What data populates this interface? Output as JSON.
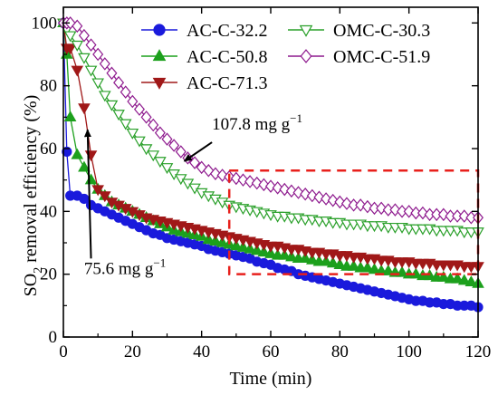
{
  "chart_data": {
    "type": "scatter",
    "xlabel": "Time (min)",
    "ylabel_main": "SO",
    "ylabel_sub": "2",
    "ylabel_rest": " removal efficiency (%)",
    "xlim": [
      0,
      120
    ],
    "ylim": [
      0,
      105
    ],
    "xticks": [
      0,
      20,
      40,
      60,
      80,
      100,
      120
    ],
    "yticks": [
      0,
      20,
      40,
      60,
      80,
      100
    ],
    "grid": false,
    "legend_position": "top",
    "series": [
      {
        "name": "AC-C-32.2",
        "color": "#1a1adc",
        "marker": "circle",
        "fill": "filled",
        "points": [
          [
            0,
            100
          ],
          [
            1,
            59
          ],
          [
            2,
            45
          ],
          [
            4,
            45
          ],
          [
            6,
            44
          ],
          [
            8,
            42
          ],
          [
            10,
            41
          ],
          [
            12,
            40
          ],
          [
            14,
            39
          ],
          [
            16,
            38
          ],
          [
            18,
            37
          ],
          [
            20,
            36
          ],
          [
            22,
            35
          ],
          [
            24,
            34
          ],
          [
            26,
            33
          ],
          [
            28,
            32.5
          ],
          [
            30,
            31.5
          ],
          [
            32,
            31
          ],
          [
            34,
            30.5
          ],
          [
            36,
            30
          ],
          [
            38,
            29.5
          ],
          [
            40,
            29
          ],
          [
            42,
            28
          ],
          [
            44,
            27.5
          ],
          [
            46,
            27
          ],
          [
            48,
            26.5
          ],
          [
            50,
            26
          ],
          [
            52,
            25.5
          ],
          [
            54,
            25
          ],
          [
            56,
            24
          ],
          [
            58,
            23.5
          ],
          [
            60,
            23
          ],
          [
            62,
            22
          ],
          [
            64,
            21.5
          ],
          [
            66,
            21
          ],
          [
            68,
            20
          ],
          [
            70,
            19.5
          ],
          [
            72,
            19
          ],
          [
            74,
            18.5
          ],
          [
            76,
            18
          ],
          [
            78,
            17.5
          ],
          [
            80,
            17
          ],
          [
            82,
            16.5
          ],
          [
            84,
            16
          ],
          [
            86,
            15.5
          ],
          [
            88,
            15
          ],
          [
            90,
            14.5
          ],
          [
            92,
            14
          ],
          [
            94,
            13.5
          ],
          [
            96,
            13
          ],
          [
            98,
            12.5
          ],
          [
            100,
            12
          ],
          [
            102,
            11.5
          ],
          [
            104,
            11.5
          ],
          [
            106,
            11
          ],
          [
            108,
            11
          ],
          [
            110,
            10.5
          ],
          [
            112,
            10.5
          ],
          [
            114,
            10
          ],
          [
            116,
            10
          ],
          [
            118,
            10
          ],
          [
            120,
            9.5
          ]
        ]
      },
      {
        "name": "AC-C-50.8",
        "color": "#1ca01c",
        "marker": "triangle-up",
        "fill": "filled",
        "points": [
          [
            0,
            100
          ],
          [
            1,
            90
          ],
          [
            2,
            70
          ],
          [
            4,
            58
          ],
          [
            6,
            54
          ],
          [
            8,
            50
          ],
          [
            10,
            47
          ],
          [
            12,
            45
          ],
          [
            14,
            43
          ],
          [
            16,
            42
          ],
          [
            18,
            41
          ],
          [
            20,
            40
          ],
          [
            22,
            39
          ],
          [
            24,
            38
          ],
          [
            26,
            37
          ],
          [
            28,
            36
          ],
          [
            30,
            35
          ],
          [
            32,
            34
          ],
          [
            34,
            33.5
          ],
          [
            36,
            33
          ],
          [
            38,
            32.5
          ],
          [
            40,
            32
          ],
          [
            42,
            31
          ],
          [
            44,
            30.5
          ],
          [
            46,
            30
          ],
          [
            48,
            29.5
          ],
          [
            50,
            29
          ],
          [
            52,
            28.5
          ],
          [
            54,
            28
          ],
          [
            56,
            27.5
          ],
          [
            58,
            27
          ],
          [
            60,
            26.5
          ],
          [
            62,
            26
          ],
          [
            64,
            26
          ],
          [
            66,
            25.5
          ],
          [
            68,
            25
          ],
          [
            70,
            25
          ],
          [
            72,
            24.5
          ],
          [
            74,
            24
          ],
          [
            76,
            24
          ],
          [
            78,
            23.5
          ],
          [
            80,
            23
          ],
          [
            82,
            22.5
          ],
          [
            84,
            22.5
          ],
          [
            86,
            22
          ],
          [
            88,
            22
          ],
          [
            90,
            21.5
          ],
          [
            92,
            21
          ],
          [
            94,
            21
          ],
          [
            96,
            20.5
          ],
          [
            98,
            20.5
          ],
          [
            100,
            20
          ],
          [
            102,
            20
          ],
          [
            104,
            19.5
          ],
          [
            106,
            19.5
          ],
          [
            108,
            19
          ],
          [
            110,
            19
          ],
          [
            112,
            18.5
          ],
          [
            114,
            18.5
          ],
          [
            116,
            18
          ],
          [
            118,
            17.5
          ],
          [
            120,
            17
          ]
        ]
      },
      {
        "name": "AC-C-71.3",
        "color": "#a01818",
        "marker": "triangle-down",
        "fill": "filled",
        "points": [
          [
            0,
            100
          ],
          [
            1,
            92
          ],
          [
            2,
            92
          ],
          [
            4,
            85
          ],
          [
            6,
            73
          ],
          [
            8,
            58
          ],
          [
            10,
            47
          ],
          [
            12,
            45
          ],
          [
            14,
            43
          ],
          [
            16,
            42
          ],
          [
            18,
            41
          ],
          [
            20,
            40
          ],
          [
            22,
            39
          ],
          [
            24,
            38
          ],
          [
            26,
            37.5
          ],
          [
            28,
            37
          ],
          [
            30,
            36.5
          ],
          [
            32,
            36
          ],
          [
            34,
            35.5
          ],
          [
            36,
            35
          ],
          [
            38,
            34.5
          ],
          [
            40,
            34
          ],
          [
            42,
            33.5
          ],
          [
            44,
            33
          ],
          [
            46,
            32.5
          ],
          [
            48,
            32
          ],
          [
            50,
            31.5
          ],
          [
            52,
            31
          ],
          [
            54,
            30.5
          ],
          [
            56,
            30
          ],
          [
            58,
            29.5
          ],
          [
            60,
            29
          ],
          [
            62,
            29
          ],
          [
            64,
            28.5
          ],
          [
            66,
            28
          ],
          [
            68,
            28
          ],
          [
            70,
            27.5
          ],
          [
            72,
            27
          ],
          [
            74,
            27
          ],
          [
            76,
            26.5
          ],
          [
            78,
            26.5
          ],
          [
            80,
            26
          ],
          [
            82,
            26
          ],
          [
            84,
            25.5
          ],
          [
            86,
            25.5
          ],
          [
            88,
            25
          ],
          [
            90,
            25
          ],
          [
            92,
            24.5
          ],
          [
            94,
            24.5
          ],
          [
            96,
            24
          ],
          [
            98,
            24
          ],
          [
            100,
            24
          ],
          [
            102,
            23.5
          ],
          [
            104,
            23.5
          ],
          [
            106,
            23.5
          ],
          [
            108,
            23
          ],
          [
            110,
            23
          ],
          [
            112,
            23
          ],
          [
            114,
            23
          ],
          [
            116,
            22.5
          ],
          [
            118,
            22.5
          ],
          [
            120,
            22.5
          ]
        ]
      },
      {
        "name": "OMC-C-30.3",
        "color": "#2aa02a",
        "marker": "triangle-down",
        "fill": "open",
        "points": [
          [
            0,
            100
          ],
          [
            1,
            98
          ],
          [
            2,
            96
          ],
          [
            4,
            93
          ],
          [
            6,
            89
          ],
          [
            8,
            85
          ],
          [
            10,
            81
          ],
          [
            12,
            77
          ],
          [
            14,
            74
          ],
          [
            16,
            71
          ],
          [
            18,
            68
          ],
          [
            20,
            65
          ],
          [
            22,
            62.5
          ],
          [
            24,
            60
          ],
          [
            26,
            58
          ],
          [
            28,
            56
          ],
          [
            30,
            54
          ],
          [
            32,
            52
          ],
          [
            34,
            50.5
          ],
          [
            36,
            49
          ],
          [
            38,
            47.5
          ],
          [
            40,
            46
          ],
          [
            42,
            45
          ],
          [
            44,
            44
          ],
          [
            46,
            43
          ],
          [
            48,
            42
          ],
          [
            50,
            41.5
          ],
          [
            52,
            41
          ],
          [
            54,
            40.5
          ],
          [
            56,
            40
          ],
          [
            58,
            39.5
          ],
          [
            60,
            39
          ],
          [
            62,
            38.5
          ],
          [
            64,
            38.5
          ],
          [
            66,
            38
          ],
          [
            68,
            38
          ],
          [
            70,
            37.5
          ],
          [
            72,
            37.5
          ],
          [
            74,
            37
          ],
          [
            76,
            37
          ],
          [
            78,
            36.5
          ],
          [
            80,
            36.5
          ],
          [
            82,
            36
          ],
          [
            84,
            36
          ],
          [
            86,
            36
          ],
          [
            88,
            35.5
          ],
          [
            90,
            35.5
          ],
          [
            92,
            35.5
          ],
          [
            94,
            35
          ],
          [
            96,
            35
          ],
          [
            98,
            35
          ],
          [
            100,
            34.5
          ],
          [
            102,
            34.5
          ],
          [
            104,
            34.5
          ],
          [
            106,
            34.5
          ],
          [
            108,
            34
          ],
          [
            110,
            34
          ],
          [
            112,
            34
          ],
          [
            114,
            34
          ],
          [
            116,
            33.5
          ],
          [
            118,
            33.5
          ],
          [
            120,
            33.5
          ]
        ]
      },
      {
        "name": "OMC-C-51.9",
        "color": "#8e1a8e",
        "marker": "diamond",
        "fill": "open",
        "points": [
          [
            0,
            100
          ],
          [
            1,
            100
          ],
          [
            2,
            100
          ],
          [
            4,
            99
          ],
          [
            6,
            96
          ],
          [
            8,
            93
          ],
          [
            10,
            90
          ],
          [
            12,
            87
          ],
          [
            14,
            84
          ],
          [
            16,
            81
          ],
          [
            18,
            78
          ],
          [
            20,
            75
          ],
          [
            22,
            72.5
          ],
          [
            24,
            70
          ],
          [
            26,
            67.5
          ],
          [
            28,
            65
          ],
          [
            30,
            63
          ],
          [
            32,
            61
          ],
          [
            34,
            59
          ],
          [
            36,
            57
          ],
          [
            38,
            55.5
          ],
          [
            40,
            54
          ],
          [
            42,
            53
          ],
          [
            44,
            52
          ],
          [
            46,
            51.5
          ],
          [
            48,
            51
          ],
          [
            50,
            50.5
          ],
          [
            52,
            50
          ],
          [
            54,
            49.5
          ],
          [
            56,
            49
          ],
          [
            58,
            48.5
          ],
          [
            60,
            48
          ],
          [
            62,
            47.5
          ],
          [
            64,
            47
          ],
          [
            66,
            46.5
          ],
          [
            68,
            46
          ],
          [
            70,
            45.5
          ],
          [
            72,
            45
          ],
          [
            74,
            44.5
          ],
          [
            76,
            44
          ],
          [
            78,
            43.5
          ],
          [
            80,
            43
          ],
          [
            82,
            42.5
          ],
          [
            84,
            42
          ],
          [
            86,
            42
          ],
          [
            88,
            41.5
          ],
          [
            90,
            41
          ],
          [
            92,
            41
          ],
          [
            94,
            40.5
          ],
          [
            96,
            40.5
          ],
          [
            98,
            40
          ],
          [
            100,
            40
          ],
          [
            102,
            39.5
          ],
          [
            104,
            39.5
          ],
          [
            106,
            39
          ],
          [
            108,
            39
          ],
          [
            110,
            39
          ],
          [
            112,
            38.5
          ],
          [
            114,
            38.5
          ],
          [
            116,
            38.5
          ],
          [
            118,
            38
          ],
          [
            120,
            38
          ]
        ]
      }
    ],
    "annotations": [
      {
        "label_main": "107.8 mg g",
        "label_sup": "−1",
        "arrow_from": [
          43,
          62
        ],
        "arrow_to": [
          35,
          56
        ],
        "text_at": [
          43,
          66
        ]
      },
      {
        "label_main": "75.6 mg g",
        "label_sup": "−1",
        "arrow_from": [
          8,
          25
        ],
        "arrow_to": [
          7,
          66
        ],
        "text_at": [
          6,
          20
        ]
      }
    ],
    "highlight_box": {
      "color": "#e8201c",
      "x_range": [
        48,
        120
      ],
      "y_range": [
        20,
        53
      ],
      "style": "dashed"
    }
  }
}
